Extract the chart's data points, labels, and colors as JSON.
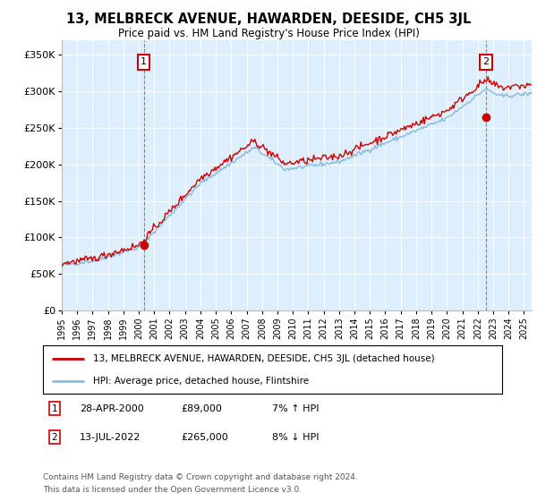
{
  "title": "13, MELBRECK AVENUE, HAWARDEN, DEESIDE, CH5 3JL",
  "subtitle": "Price paid vs. HM Land Registry's House Price Index (HPI)",
  "property_label": "13, MELBRECK AVENUE, HAWARDEN, DEESIDE, CH5 3JL (detached house)",
  "hpi_label": "HPI: Average price, detached house, Flintshire",
  "sale1_date": "28-APR-2000",
  "sale1_price": "£89,000",
  "sale1_hpi": "7% ↑ HPI",
  "sale2_date": "13-JUL-2022",
  "sale2_price": "£265,000",
  "sale2_hpi": "8% ↓ HPI",
  "footer1": "Contains HM Land Registry data © Crown copyright and database right 2024.",
  "footer2": "This data is licensed under the Open Government Licence v3.0.",
  "property_color": "#cc0000",
  "hpi_color": "#88bbdd",
  "background_color": "#ddeeff",
  "sale1_year": 2000.32,
  "sale1_price_val": 89000,
  "sale2_year": 2022.54,
  "sale2_price_val": 265000,
  "ylim_min": 0,
  "ylim_max": 370000,
  "xlim_min": 1995.0,
  "xlim_max": 2025.5
}
